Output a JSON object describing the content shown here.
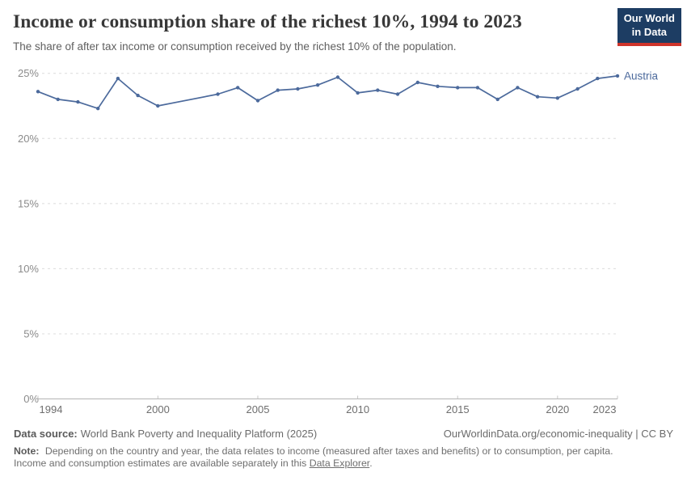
{
  "header": {
    "title": "Income or consumption share of the richest 10%, 1994 to 2023",
    "subtitle": "The share of after tax income or consumption received by the richest 10% of the population.",
    "logo": {
      "line1": "Our World",
      "line2": "in Data"
    }
  },
  "chart_data": {
    "type": "line",
    "title": "Income or consumption share of the richest 10%, 1994 to 2023",
    "subtitle": "The share of after tax income or consumption received by the richest 10% of the population.",
    "xlabel": "",
    "ylabel": "",
    "xlim": [
      1994,
      2023
    ],
    "ylim": [
      0,
      25
    ],
    "grid": "horizontal-dashed",
    "legend_position": "end-of-line",
    "x_ticks": [
      {
        "value": 1994,
        "label": "1994"
      },
      {
        "value": 2000,
        "label": "2000"
      },
      {
        "value": 2005,
        "label": "2005"
      },
      {
        "value": 2010,
        "label": "2010"
      },
      {
        "value": 2015,
        "label": "2015"
      },
      {
        "value": 2020,
        "label": "2020"
      },
      {
        "value": 2023,
        "label": "2023"
      }
    ],
    "y_ticks": [
      {
        "value": 0,
        "label": "0%"
      },
      {
        "value": 5,
        "label": "5%"
      },
      {
        "value": 10,
        "label": "10%"
      },
      {
        "value": 15,
        "label": "15%"
      },
      {
        "value": 20,
        "label": "20%"
      },
      {
        "value": 25,
        "label": "25%"
      }
    ],
    "series": [
      {
        "name": "Austria",
        "color": "#4c6a9c",
        "points": [
          [
            1994,
            23.6
          ],
          [
            1995,
            23.0
          ],
          [
            1996,
            22.8
          ],
          [
            1997,
            22.3
          ],
          [
            1998,
            24.6
          ],
          [
            1999,
            23.3
          ],
          [
            2000,
            22.5
          ],
          [
            2003,
            23.4
          ],
          [
            2004,
            23.9
          ],
          [
            2005,
            22.9
          ],
          [
            2006,
            23.7
          ],
          [
            2007,
            23.8
          ],
          [
            2008,
            24.1
          ],
          [
            2009,
            24.7
          ],
          [
            2010,
            23.5
          ],
          [
            2011,
            23.7
          ],
          [
            2012,
            23.4
          ],
          [
            2013,
            24.3
          ],
          [
            2014,
            24.0
          ],
          [
            2015,
            23.9
          ],
          [
            2016,
            23.9
          ],
          [
            2017,
            23.0
          ],
          [
            2018,
            23.9
          ],
          [
            2019,
            23.2
          ],
          [
            2020,
            23.1
          ],
          [
            2021,
            23.8
          ],
          [
            2022,
            24.6
          ],
          [
            2023,
            24.8
          ]
        ]
      }
    ]
  },
  "colors": {
    "series": "#4c6a9c",
    "grid": "#dcdcdc",
    "axis": "#b3b3b3",
    "tick": "#c4c4c4",
    "y_label": "#8b8b8b",
    "x_label": "#6e6e6e",
    "logo_bg": "#1d3d63",
    "logo_accent": "#cf342b"
  },
  "footer": {
    "datasource_label": "Data source:",
    "datasource": "World Bank Poverty and Inequality Platform (2025)",
    "attribution": "OurWorldinData.org/economic-inequality | CC BY",
    "note_label": "Note:",
    "note_before_link": " Depending on the country and year, the data relates to income (measured after taxes and benefits) or to consumption, per capita. Income and consumption estimates are available separately in this ",
    "note_link": "Data Explorer",
    "note_after_link": "."
  }
}
